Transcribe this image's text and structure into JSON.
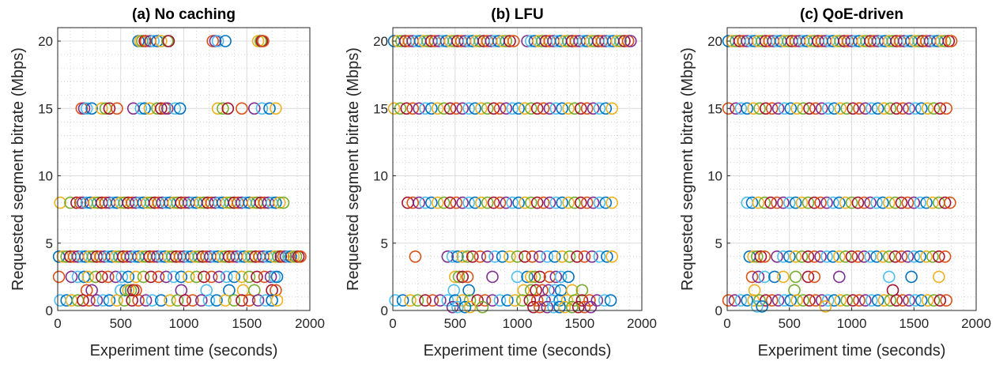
{
  "colors": [
    "#0072BD",
    "#D95319",
    "#EDB120",
    "#7E2F8E",
    "#77AC30",
    "#4DBEEE",
    "#A2142F"
  ],
  "chart_data": [
    {
      "type": "scatter",
      "title": "(a) No caching",
      "xlabel": "Experiment time (seconds)",
      "ylabel": "Requested segment bitrate (Mbps)",
      "xlim": [
        0,
        2000
      ],
      "ylim": [
        0,
        21
      ],
      "xticks": [
        0,
        500,
        1000,
        1500,
        2000
      ],
      "yticks": [
        0,
        5,
        10,
        15,
        20
      ],
      "grid": true,
      "marker": "open-circle",
      "levels": [
        {
          "y": 20,
          "x": [
            640,
            655,
            670,
            690,
            700,
            735,
            760,
            790,
            820,
            870,
            880,
            1230,
            1250,
            1270,
            1330,
            1590,
            1610,
            1620,
            1630
          ]
        },
        {
          "y": 15,
          "x": [
            190,
            210,
            230,
            270,
            350,
            380,
            410,
            470,
            600,
            660,
            690,
            730,
            790,
            820,
            850,
            870,
            930,
            970,
            1270,
            1310,
            1350,
            1460,
            1560,
            1620,
            1680,
            1730
          ]
        },
        {
          "y": 8,
          "x": [
            20,
            100,
            150,
            180,
            200,
            230,
            260,
            290,
            320,
            350,
            380,
            410,
            440,
            470,
            500,
            530,
            560,
            590,
            620,
            650,
            680,
            710,
            740,
            770,
            800,
            830,
            860,
            890,
            920,
            950,
            980,
            1010,
            1040,
            1070,
            1100,
            1130,
            1160,
            1190,
            1220,
            1250,
            1280,
            1310,
            1340,
            1370,
            1400,
            1430,
            1460,
            1490,
            1520,
            1550,
            1580,
            1610,
            1640,
            1670,
            1700,
            1730,
            1760,
            1790
          ]
        },
        {
          "y": 4,
          "x": [
            10,
            40,
            70,
            100,
            130,
            160,
            190,
            220,
            250,
            280,
            310,
            340,
            370,
            400,
            430,
            460,
            490,
            520,
            550,
            580,
            610,
            640,
            670,
            700,
            730,
            760,
            790,
            820,
            850,
            880,
            910,
            940,
            970,
            1000,
            1030,
            1060,
            1090,
            1120,
            1150,
            1180,
            1210,
            1240,
            1270,
            1300,
            1330,
            1360,
            1390,
            1420,
            1450,
            1480,
            1510,
            1540,
            1570,
            1600,
            1630,
            1660,
            1690,
            1720,
            1750,
            1770,
            1790,
            1810,
            1830,
            1850,
            1870,
            1890,
            1910,
            1925
          ]
        },
        {
          "y": 2.5,
          "x": [
            10,
            110,
            160,
            210,
            240,
            300,
            350,
            400,
            460,
            510,
            560,
            620,
            680,
            740,
            800,
            860,
            920,
            980,
            1040,
            1100,
            1160,
            1220,
            1280,
            1340,
            1400,
            1460,
            1520,
            1580,
            1640,
            1690,
            1720,
            1740
          ]
        },
        {
          "y": 1.5,
          "x": [
            230,
            270,
            500,
            540,
            560,
            580,
            600,
            620,
            980,
            1180,
            1360,
            1470,
            1560,
            1700,
            1730
          ]
        },
        {
          "y": 0.75,
          "x": [
            20,
            70,
            110,
            160,
            200,
            250,
            310,
            360,
            410,
            470,
            530,
            590,
            640,
            700,
            750,
            820,
            890,
            950,
            1010,
            1070,
            1140,
            1200,
            1260,
            1330,
            1400,
            1460,
            1520,
            1590,
            1650,
            1700,
            1740
          ]
        }
      ]
    },
    {
      "type": "scatter",
      "title": "(b) LFU",
      "xlabel": "Experiment time (seconds)",
      "ylabel": "Requested segment bitrate (Mbps)",
      "xlim": [
        0,
        2000
      ],
      "ylim": [
        0,
        21
      ],
      "xticks": [
        0,
        500,
        1000,
        1500,
        2000
      ],
      "yticks": [
        0,
        5,
        10,
        15,
        20
      ],
      "grid": true,
      "marker": "open-circle",
      "levels": [
        {
          "y": 20,
          "x": [
            10,
            40,
            70,
            100,
            130,
            160,
            190,
            220,
            250,
            280,
            310,
            340,
            370,
            400,
            430,
            460,
            490,
            520,
            550,
            580,
            610,
            640,
            670,
            700,
            730,
            760,
            790,
            820,
            850,
            880,
            910,
            940,
            970,
            1080,
            1110,
            1140,
            1170,
            1200,
            1230,
            1260,
            1290,
            1320,
            1350,
            1380,
            1410,
            1440,
            1470,
            1500,
            1530,
            1560,
            1590,
            1620,
            1650,
            1680,
            1710,
            1740,
            1770,
            1800,
            1830,
            1860,
            1890,
            1910
          ]
        },
        {
          "y": 15,
          "x": [
            10,
            60,
            110,
            160,
            210,
            260,
            310,
            360,
            410,
            460,
            510,
            560,
            610,
            660,
            710,
            760,
            810,
            860,
            910,
            960,
            1010,
            1060,
            1110,
            1160,
            1210,
            1260,
            1310,
            1360,
            1410,
            1460,
            1510,
            1560,
            1610,
            1660,
            1710,
            1760
          ]
        },
        {
          "y": 8,
          "x": [
            120,
            160,
            210,
            260,
            310,
            360,
            410,
            460,
            510,
            560,
            610,
            660,
            710,
            760,
            810,
            860,
            910,
            960,
            1010,
            1060,
            1110,
            1160,
            1210,
            1260,
            1310,
            1360,
            1410,
            1460,
            1510,
            1560,
            1610,
            1660,
            1710,
            1760
          ]
        },
        {
          "y": 4,
          "x": [
            180,
            440,
            480,
            520,
            560,
            600,
            640,
            700,
            760,
            820,
            880,
            940,
            1000,
            1060,
            1120,
            1180,
            1240,
            1300,
            1360,
            1420,
            1480,
            1540,
            1600,
            1660,
            1720,
            1760
          ]
        },
        {
          "y": 2.5,
          "x": [
            500,
            530,
            560,
            600,
            800,
            1000,
            1080,
            1110,
            1140,
            1180,
            1260,
            1310,
            1350,
            1410
          ]
        },
        {
          "y": 1.5,
          "x": [
            490,
            610,
            1050,
            1110,
            1150,
            1200,
            1250,
            1300,
            1350,
            1440,
            1520
          ]
        },
        {
          "y": 0.75,
          "x": [
            20,
            80,
            140,
            200,
            260,
            320,
            380,
            440,
            500,
            560,
            620,
            680,
            740,
            800,
            860,
            920,
            980,
            1040,
            1100,
            1160,
            1220,
            1280,
            1340,
            1400,
            1460,
            1520,
            1580,
            1640,
            1700,
            1750
          ]
        },
        {
          "y": 0.25,
          "x": [
            480,
            520,
            580,
            620,
            720,
            1130,
            1180,
            1240,
            1290,
            1340,
            1380,
            1440,
            1490,
            1540,
            1590
          ]
        }
      ]
    },
    {
      "type": "scatter",
      "title": "(c) QoE-driven",
      "xlabel": "Experiment time (seconds)",
      "ylabel": "Requested segment bitrate (Mbps)",
      "xlim": [
        0,
        2000
      ],
      "ylim": [
        0,
        21
      ],
      "xticks": [
        0,
        500,
        1000,
        1500,
        2000
      ],
      "yticks": [
        0,
        5,
        10,
        15,
        20
      ],
      "grid": true,
      "marker": "open-circle",
      "levels": [
        {
          "y": 20,
          "x": [
            10,
            40,
            70,
            100,
            130,
            160,
            190,
            220,
            250,
            280,
            310,
            340,
            370,
            400,
            430,
            460,
            490,
            520,
            550,
            580,
            610,
            640,
            670,
            700,
            730,
            760,
            790,
            820,
            850,
            880,
            910,
            940,
            970,
            1000,
            1030,
            1060,
            1090,
            1120,
            1150,
            1180,
            1210,
            1240,
            1270,
            1300,
            1330,
            1360,
            1390,
            1420,
            1450,
            1480,
            1510,
            1540,
            1570,
            1600,
            1630,
            1660,
            1690,
            1720,
            1750,
            1780,
            1800
          ]
        },
        {
          "y": 15,
          "x": [
            10,
            70,
            110,
            160,
            210,
            260,
            310,
            360,
            410,
            460,
            510,
            560,
            610,
            660,
            710,
            760,
            810,
            860,
            910,
            960,
            1010,
            1060,
            1110,
            1160,
            1210,
            1260,
            1310,
            1360,
            1410,
            1460,
            1510,
            1560,
            1610,
            1660,
            1710,
            1760
          ]
        },
        {
          "y": 8,
          "x": [
            160,
            200,
            250,
            300,
            350,
            400,
            450,
            500,
            550,
            600,
            650,
            700,
            750,
            800,
            850,
            900,
            950,
            1000,
            1050,
            1100,
            1150,
            1200,
            1250,
            1300,
            1350,
            1400,
            1450,
            1500,
            1550,
            1600,
            1650,
            1700,
            1750,
            1790
          ]
        },
        {
          "y": 4,
          "x": [
            180,
            210,
            240,
            270,
            300,
            400,
            450,
            500,
            550,
            600,
            650,
            700,
            750,
            800,
            850,
            900,
            950,
            1000,
            1050,
            1100,
            1150,
            1200,
            1250,
            1300,
            1350,
            1400,
            1450,
            1500,
            1550,
            1600,
            1650,
            1700,
            1750
          ]
        },
        {
          "y": 2.5,
          "x": [
            200,
            250,
            300,
            380,
            450,
            550,
            650,
            700,
            900,
            1300,
            1480,
            1700
          ]
        },
        {
          "y": 1.5,
          "x": [
            220,
            540,
            1330
          ]
        },
        {
          "y": 0.75,
          "x": [
            10,
            60,
            110,
            160,
            210,
            260,
            310,
            360,
            410,
            460,
            510,
            560,
            610,
            660,
            710,
            760,
            810,
            860,
            910,
            960,
            1010,
            1060,
            1110,
            1160,
            1210,
            1260,
            1310,
            1360,
            1410,
            1460,
            1510,
            1560,
            1610,
            1660,
            1710,
            1760
          ]
        },
        {
          "y": 0.3,
          "x": [
            240,
            280,
            790
          ]
        }
      ]
    }
  ]
}
